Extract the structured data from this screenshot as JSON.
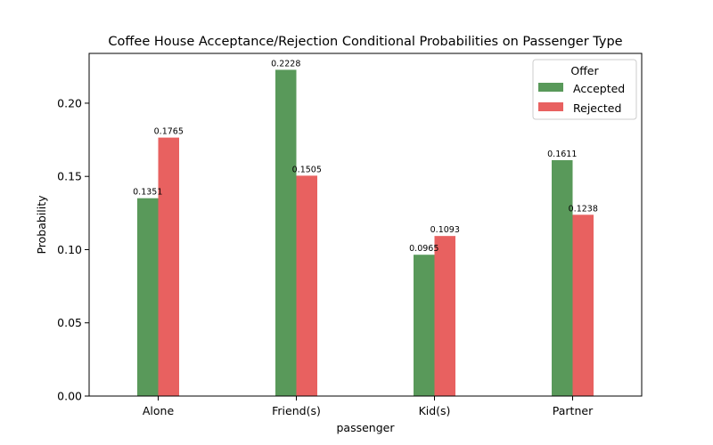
{
  "chart_data": {
    "type": "bar",
    "title": "Coffee House Acceptance/Rejection Conditional Probabilities on Passenger Type",
    "xlabel": "passenger",
    "ylabel": "Probability",
    "categories": [
      "Alone",
      "Friend(s)",
      "Kid(s)",
      "Partner"
    ],
    "series": [
      {
        "name": "Accepted",
        "values": [
          0.1351,
          0.2228,
          0.0965,
          0.1611
        ],
        "labels": [
          "0.1351",
          "0.2228",
          "0.0965",
          "0.1611"
        ],
        "color": "#59995a"
      },
      {
        "name": "Rejected",
        "values": [
          0.1765,
          0.1505,
          0.1093,
          0.1238
        ],
        "labels": [
          "0.1765",
          "0.1505",
          "0.1093",
          "0.1238"
        ],
        "color": "#e86160"
      }
    ],
    "ylim": [
      0,
      0.234
    ],
    "yticks": [
      0.0,
      0.05,
      0.1,
      0.15,
      0.2
    ],
    "ytick_labels": [
      "0.00",
      "0.05",
      "0.10",
      "0.15",
      "0.20"
    ],
    "grid": false,
    "legend": {
      "title": "Offer",
      "placement": "top-right"
    }
  }
}
